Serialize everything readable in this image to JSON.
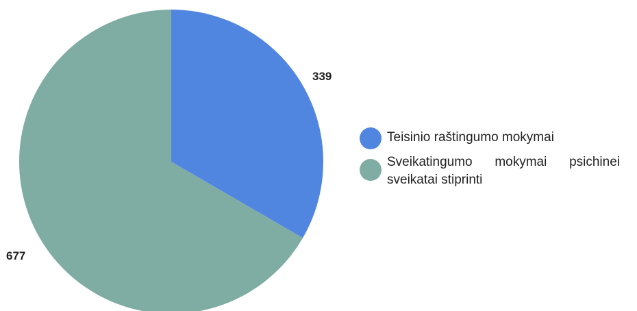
{
  "chart_data": {
    "type": "pie",
    "title": "",
    "slices": [
      {
        "label": "Teisinio raštingumo mokymai",
        "value": 339,
        "color": "#5186e0"
      },
      {
        "label": "Sveikatingumo mokymai psichinei sveikatai stiprinti",
        "value": 677,
        "color": "#7fada4"
      }
    ],
    "data_labels": [
      "339",
      "677"
    ],
    "legend_position": "right"
  }
}
